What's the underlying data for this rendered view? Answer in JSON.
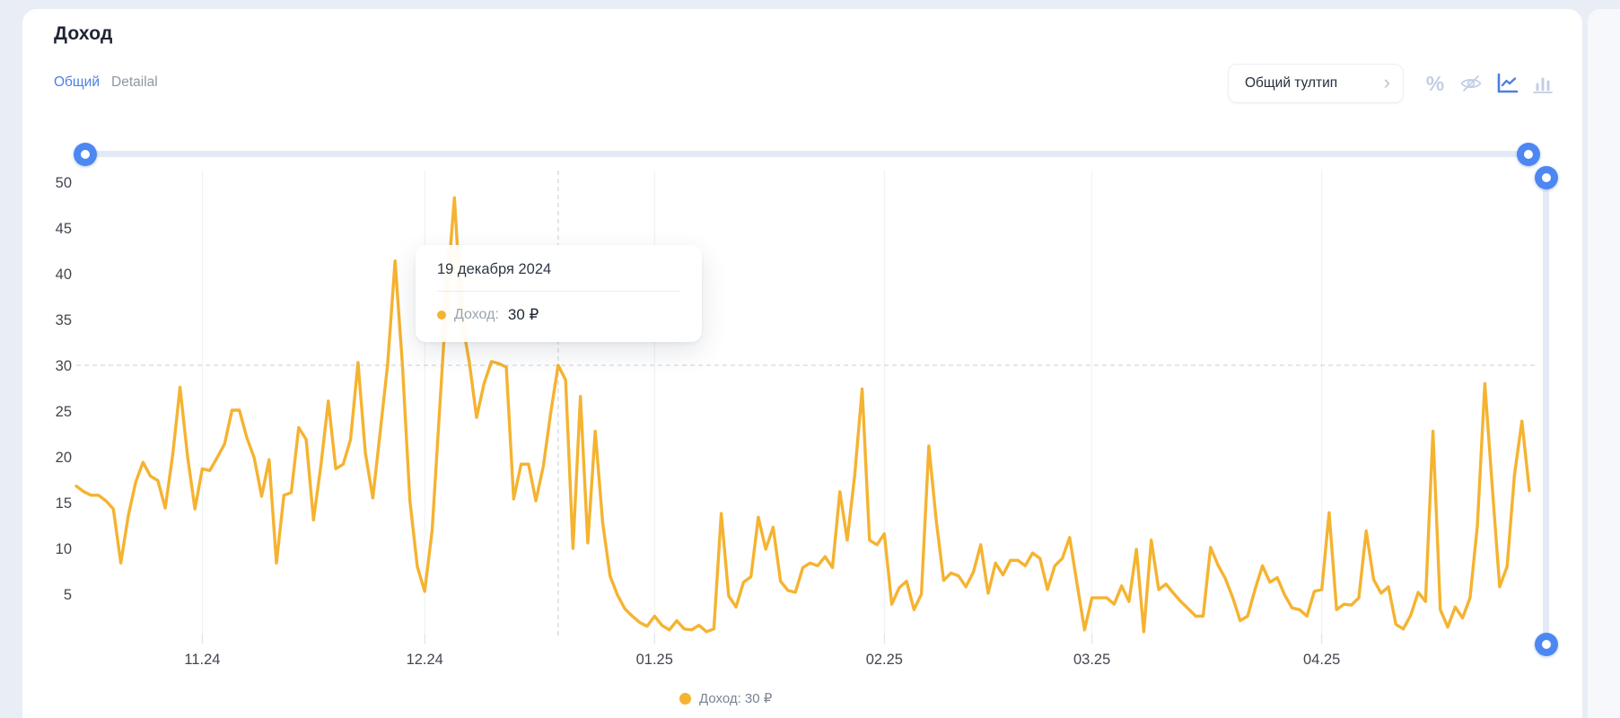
{
  "colors": {
    "accent_blue": "#4D87F2",
    "series_yellow": "#F5B330",
    "card_bg": "#FFFFFF",
    "page_bg": "#E9EEF6"
  },
  "header": {
    "title": "Доход"
  },
  "tabs": [
    {
      "label": "Общий",
      "active": true
    },
    {
      "label": "Detailal",
      "active": false
    }
  ],
  "toolbar": {
    "tooltip_mode_label": "Общий тултип",
    "chevron": "›",
    "icons": [
      {
        "name": "percent-icon",
        "glyph": "%",
        "active": false
      },
      {
        "name": "eye-off-icon",
        "active": false
      },
      {
        "name": "line-chart-icon",
        "active": true
      },
      {
        "name": "bar-chart-icon",
        "active": false
      }
    ]
  },
  "tooltip": {
    "date": "19 декабря 2024",
    "series_label": "Доход:",
    "value": "30 ₽"
  },
  "legend": {
    "label": "Доход: 30 ₽"
  },
  "chart_data": {
    "type": "line",
    "series_name": "Доход",
    "unit": "₽",
    "color": "#F5B330",
    "start_date": "2024-10-15",
    "x_tick_labels": [
      "11.24",
      "12.24",
      "01.25",
      "02.25",
      "03.25",
      "04.25"
    ],
    "x_tick_day_index": [
      17,
      47,
      78,
      109,
      137,
      168
    ],
    "y_ticks": [
      5,
      10,
      15,
      20,
      25,
      30,
      35,
      40,
      45,
      50
    ],
    "ylim": [
      0,
      52
    ],
    "grid": {
      "vertical_month_lines": true,
      "horizontal_lines": false
    },
    "hover": {
      "index": 65,
      "date_label": "19 декабря 2024",
      "value": 30,
      "value_label": "30 ₽"
    },
    "values": [
      16.8,
      16.2,
      15.8,
      15.8,
      15.2,
      14.3,
      8.4,
      13.5,
      17.2,
      19.4,
      17.9,
      17.4,
      14.4,
      20.2,
      27.6,
      20.1,
      14.3,
      18.7,
      18.5,
      19.9,
      21.4,
      25.1,
      25.1,
      22.1,
      19.9,
      15.7,
      19.7,
      8.4,
      15.8,
      16.1,
      23.2,
      21.9,
      13.1,
      19.1,
      26.1,
      18.7,
      19.2,
      21.9,
      30.3,
      20.4,
      15.5,
      22.8,
      30.1,
      41.4,
      30.0,
      15.2,
      8.0,
      5.3,
      12.0,
      25.0,
      38.0,
      48.3,
      35.0,
      30.4,
      24.3,
      28.0,
      30.4,
      30.2,
      29.8,
      15.4,
      19.2,
      19.2,
      15.2,
      19.0,
      24.8,
      30.0,
      28.4,
      10.0,
      26.6,
      10.6,
      22.8,
      12.8,
      7.0,
      4.9,
      3.4,
      2.6,
      1.9,
      1.5,
      2.6,
      1.6,
      1.1,
      2.1,
      1.2,
      1.1,
      1.6,
      0.9,
      1.2,
      13.8,
      4.8,
      3.6,
      6.3,
      6.9,
      13.4,
      9.9,
      12.3,
      6.4,
      5.4,
      5.2,
      7.9,
      8.4,
      8.1,
      9.1,
      7.9,
      16.2,
      10.9,
      18.0,
      27.4,
      10.9,
      10.4,
      11.6,
      3.9,
      5.7,
      6.4,
      3.3,
      5.0,
      21.2,
      13.0,
      6.5,
      7.3,
      7.0,
      5.8,
      7.4,
      10.4,
      5.1,
      8.4,
      7.1,
      8.7,
      8.7,
      8.1,
      9.5,
      8.9,
      5.5,
      8.1,
      8.9,
      11.2,
      6.1,
      1.1,
      4.6,
      4.6,
      4.6,
      3.9,
      5.9,
      4.2,
      9.9,
      0.9,
      10.9,
      5.5,
      6.1,
      5.1,
      4.2,
      3.4,
      2.6,
      2.6,
      10.1,
      8.2,
      6.7,
      4.6,
      2.1,
      2.6,
      5.5,
      8.1,
      6.3,
      6.8,
      4.9,
      3.5,
      3.3,
      2.6,
      5.3,
      5.5,
      13.9,
      3.3,
      3.9,
      3.8,
      4.6,
      11.9,
      6.6,
      5.1,
      5.8,
      1.7,
      1.2,
      2.7,
      5.2,
      4.2,
      22.8,
      3.3,
      1.4,
      3.6,
      2.4,
      4.6,
      12.5,
      28.0,
      16.7,
      5.8,
      8.0,
      18.0,
      23.9,
      16.3
    ]
  }
}
